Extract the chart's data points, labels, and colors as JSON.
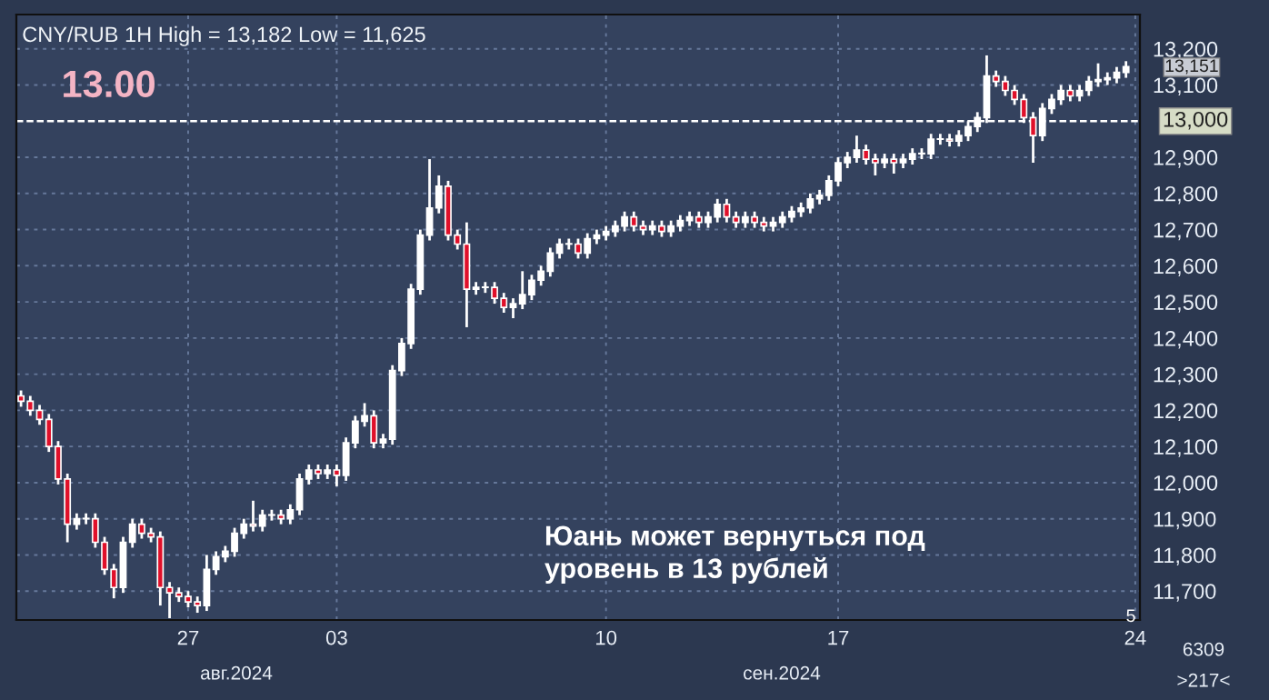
{
  "chart_data": {
    "type": "candlestick",
    "title": "CNY/RUB 1H High = 13,182 Low = 11,625",
    "categories": [
      null,
      null,
      null,
      null,
      null,
      null,
      null,
      null,
      null,
      null,
      null,
      null,
      null,
      null,
      null,
      null,
      null,
      null,
      "27",
      null,
      null,
      null,
      null,
      null,
      null,
      null,
      null,
      null,
      null,
      null,
      null,
      null,
      null,
      null,
      "03",
      null,
      null,
      null,
      null,
      null,
      null,
      null,
      null,
      null,
      null,
      null,
      null,
      null,
      null,
      null,
      null,
      null,
      null,
      null,
      null,
      null,
      null,
      null,
      null,
      null,
      null,
      null,
      null,
      "10",
      null,
      null,
      null,
      null,
      null,
      null,
      null,
      null,
      null,
      null,
      null,
      null,
      null,
      null,
      null,
      null,
      null,
      null,
      null,
      null,
      null,
      null,
      null,
      null,
      "17",
      null,
      null,
      null,
      null,
      null,
      null,
      null,
      null,
      null,
      null,
      null,
      null,
      null,
      null,
      null,
      null,
      null,
      null,
      null,
      null,
      null,
      null,
      null,
      null,
      null,
      null,
      null,
      null,
      null,
      null,
      null,
      "24"
    ],
    "ohlc": [
      [
        12240,
        12255,
        12210,
        12225
      ],
      [
        12225,
        12240,
        12185,
        12200
      ],
      [
        12200,
        12215,
        12160,
        12175
      ],
      [
        12175,
        12190,
        12085,
        12100
      ],
      [
        12100,
        12115,
        11995,
        12010
      ],
      [
        12010,
        12025,
        11835,
        11885
      ],
      [
        11885,
        11915,
        11870,
        11900
      ],
      [
        11900,
        11915,
        11885,
        11900
      ],
      [
        11900,
        11915,
        11820,
        11835
      ],
      [
        11835,
        11850,
        11745,
        11760
      ],
      [
        11760,
        11775,
        11680,
        11710
      ],
      [
        11710,
        11850,
        11695,
        11835
      ],
      [
        11835,
        11900,
        11820,
        11885
      ],
      [
        11885,
        11900,
        11845,
        11860
      ],
      [
        11860,
        11875,
        11835,
        11850
      ],
      [
        11850,
        11865,
        11660,
        11710
      ],
      [
        11710,
        11725,
        11625,
        11695
      ],
      [
        11695,
        11710,
        11670,
        11685
      ],
      [
        11685,
        11700,
        11655,
        11670
      ],
      [
        11670,
        11685,
        11640,
        11660
      ],
      [
        11660,
        11800,
        11645,
        11760
      ],
      [
        11760,
        11810,
        11745,
        11795
      ],
      [
        11795,
        11825,
        11780,
        11810
      ],
      [
        11810,
        11875,
        11795,
        11860
      ],
      [
        11860,
        11900,
        11845,
        11885
      ],
      [
        11885,
        11950,
        11865,
        11880
      ],
      [
        11880,
        11925,
        11865,
        11910
      ],
      [
        11910,
        11925,
        11895,
        11910
      ],
      [
        11910,
        11925,
        11885,
        11900
      ],
      [
        11900,
        11940,
        11885,
        11925
      ],
      [
        11925,
        12025,
        11910,
        12010
      ],
      [
        12010,
        12050,
        11995,
        12035
      ],
      [
        12035,
        12050,
        12010,
        12025
      ],
      [
        12025,
        12050,
        12010,
        12035
      ],
      [
        12035,
        12050,
        11990,
        12020
      ],
      [
        12020,
        12125,
        12005,
        12110
      ],
      [
        12110,
        12185,
        12095,
        12170
      ],
      [
        12170,
        12220,
        12155,
        12185
      ],
      [
        12185,
        12200,
        12095,
        12110
      ],
      [
        12110,
        12135,
        12095,
        12120
      ],
      [
        12120,
        12325,
        12105,
        12310
      ],
      [
        12310,
        12400,
        12295,
        12385
      ],
      [
        12385,
        12550,
        12370,
        12535
      ],
      [
        12535,
        12700,
        12520,
        12685
      ],
      [
        12685,
        12895,
        12670,
        12760
      ],
      [
        12760,
        12850,
        12745,
        12820
      ],
      [
        12820,
        12835,
        12670,
        12685
      ],
      [
        12685,
        12700,
        12645,
        12660
      ],
      [
        12660,
        12720,
        12430,
        12535
      ],
      [
        12535,
        12555,
        12520,
        12540
      ],
      [
        12540,
        12555,
        12525,
        12540
      ],
      [
        12540,
        12555,
        12495,
        12510
      ],
      [
        12510,
        12525,
        12470,
        12485
      ],
      [
        12485,
        12510,
        12455,
        12495
      ],
      [
        12495,
        12585,
        12480,
        12520
      ],
      [
        12520,
        12575,
        12505,
        12560
      ],
      [
        12560,
        12600,
        12545,
        12585
      ],
      [
        12585,
        12650,
        12570,
        12635
      ],
      [
        12635,
        12675,
        12620,
        12660
      ],
      [
        12660,
        12675,
        12645,
        12660
      ],
      [
        12660,
        12675,
        12620,
        12635
      ],
      [
        12635,
        12690,
        12620,
        12675
      ],
      [
        12675,
        12700,
        12660,
        12685
      ],
      [
        12685,
        12710,
        12670,
        12695
      ],
      [
        12695,
        12725,
        12680,
        12710
      ],
      [
        12710,
        12750,
        12695,
        12735
      ],
      [
        12735,
        12750,
        12695,
        12710
      ],
      [
        12710,
        12725,
        12685,
        12700
      ],
      [
        12700,
        12725,
        12685,
        12710
      ],
      [
        12710,
        12725,
        12680,
        12695
      ],
      [
        12695,
        12725,
        12680,
        12710
      ],
      [
        12710,
        12740,
        12695,
        12725
      ],
      [
        12725,
        12750,
        12710,
        12735
      ],
      [
        12735,
        12750,
        12705,
        12720
      ],
      [
        12720,
        12750,
        12705,
        12735
      ],
      [
        12735,
        12785,
        12720,
        12770
      ],
      [
        12770,
        12785,
        12720,
        12735
      ],
      [
        12735,
        12750,
        12705,
        12720
      ],
      [
        12720,
        12750,
        12705,
        12735
      ],
      [
        12735,
        12750,
        12705,
        12720
      ],
      [
        12720,
        12735,
        12695,
        12710
      ],
      [
        12710,
        12735,
        12695,
        12720
      ],
      [
        12720,
        12750,
        12705,
        12735
      ],
      [
        12735,
        12765,
        12720,
        12750
      ],
      [
        12750,
        12775,
        12735,
        12760
      ],
      [
        12760,
        12800,
        12745,
        12785
      ],
      [
        12785,
        12810,
        12770,
        12795
      ],
      [
        12795,
        12850,
        12780,
        12835
      ],
      [
        12835,
        12900,
        12820,
        12885
      ],
      [
        12885,
        12915,
        12870,
        12900
      ],
      [
        12900,
        12960,
        12885,
        12920
      ],
      [
        12920,
        12935,
        12880,
        12895
      ],
      [
        12895,
        12910,
        12850,
        12885
      ],
      [
        12885,
        12910,
        12870,
        12895
      ],
      [
        12895,
        12910,
        12855,
        12885
      ],
      [
        12885,
        12910,
        12870,
        12895
      ],
      [
        12895,
        12925,
        12880,
        12910
      ],
      [
        12910,
        12925,
        12895,
        12910
      ],
      [
        12910,
        12965,
        12895,
        12950
      ],
      [
        12950,
        12965,
        12935,
        12950
      ],
      [
        12950,
        12965,
        12930,
        12945
      ],
      [
        12945,
        12975,
        12930,
        12960
      ],
      [
        12960,
        13000,
        12945,
        12985
      ],
      [
        12985,
        13025,
        12970,
        13010
      ],
      [
        13010,
        13182,
        12995,
        13125
      ],
      [
        13125,
        13140,
        13095,
        13110
      ],
      [
        13110,
        13125,
        13070,
        13085
      ],
      [
        13085,
        13100,
        13045,
        13060
      ],
      [
        13060,
        13075,
        12995,
        13010
      ],
      [
        13010,
        13025,
        12885,
        12960
      ],
      [
        12960,
        13050,
        12945,
        13035
      ],
      [
        13035,
        13075,
        13020,
        13060
      ],
      [
        13060,
        13100,
        13045,
        13085
      ],
      [
        13085,
        13100,
        13055,
        13070
      ],
      [
        13070,
        13100,
        13055,
        13085
      ],
      [
        13085,
        13125,
        13070,
        13110
      ],
      [
        13110,
        13160,
        13095,
        13115
      ],
      [
        13115,
        13135,
        13100,
        13120
      ],
      [
        13120,
        13150,
        13105,
        13135
      ],
      [
        13135,
        13166,
        13120,
        13151
      ],
      null
    ],
    "ylim": [
      11620,
      13295
    ],
    "yticks": [
      {
        "value": 11700,
        "label": "11,700"
      },
      {
        "value": 11800,
        "label": "11,800"
      },
      {
        "value": 11900,
        "label": "11,900"
      },
      {
        "value": 12000,
        "label": "12,000"
      },
      {
        "value": 12100,
        "label": "12,100"
      },
      {
        "value": 12200,
        "label": "12,200"
      },
      {
        "value": 12300,
        "label": "12,300"
      },
      {
        "value": 12400,
        "label": "12,400"
      },
      {
        "value": 12500,
        "label": "12,500"
      },
      {
        "value": 12600,
        "label": "12,600"
      },
      {
        "value": 12700,
        "label": "12,700"
      },
      {
        "value": 12800,
        "label": "12,800"
      },
      {
        "value": 12900,
        "label": "12,900"
      },
      {
        "value": 13100,
        "label": "13,100"
      },
      {
        "value": 13200,
        "label": "13,200"
      }
    ],
    "ref_lines": [
      {
        "axis": "y",
        "value": 13000,
        "label": "13,000",
        "color": "#ffffff",
        "line_style": "dashed"
      }
    ],
    "grid": true,
    "annotations": [
      "13.00",
      "13,151",
      "Юань может вернуться под\nуровень в 13 рублей",
      "авг.2024",
      "сен.2024",
      "5",
      "6309",
      ">217<"
    ]
  }
}
